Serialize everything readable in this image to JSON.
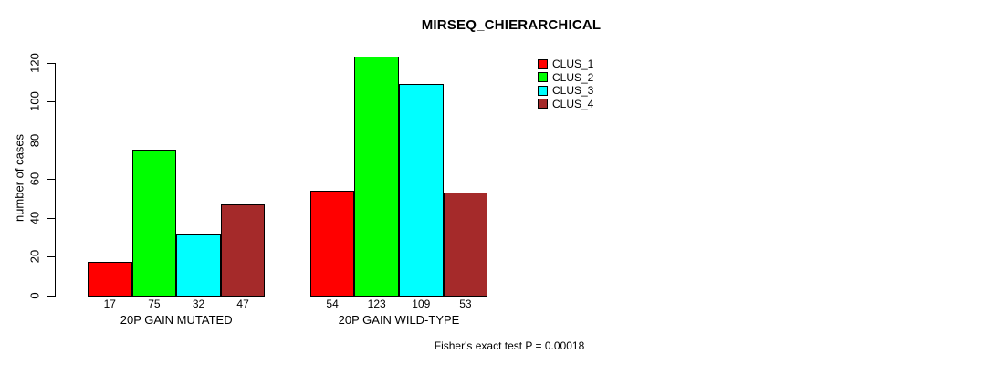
{
  "chart_data": {
    "type": "bar",
    "title": "MIRSEQ_CHIERARCHICAL",
    "ylabel": "number of cases",
    "xlabel": "",
    "categories": [
      "20P GAIN MUTATED",
      "20P GAIN WILD-TYPE"
    ],
    "series": [
      {
        "name": "CLUS_1",
        "color": "#FF0000",
        "values": [
          17,
          54
        ]
      },
      {
        "name": "CLUS_2",
        "color": "#00FF00",
        "values": [
          75,
          123
        ]
      },
      {
        "name": "CLUS_3",
        "color": "#00FFFF",
        "values": [
          32,
          109
        ]
      },
      {
        "name": "CLUS_4",
        "color": "#A52A2A",
        "values": [
          47,
          53
        ]
      }
    ],
    "yticks": [
      0,
      20,
      40,
      60,
      80,
      100,
      120
    ],
    "ylim": [
      0,
      130
    ],
    "bar_value_labels_shown": true,
    "grid": false,
    "legend_position": "top-right",
    "legend": [
      "CLUS_1",
      "CLUS_2",
      "CLUS_3",
      "CLUS_4"
    ],
    "annotation": "Fisher's exact test P = 0.00018"
  }
}
